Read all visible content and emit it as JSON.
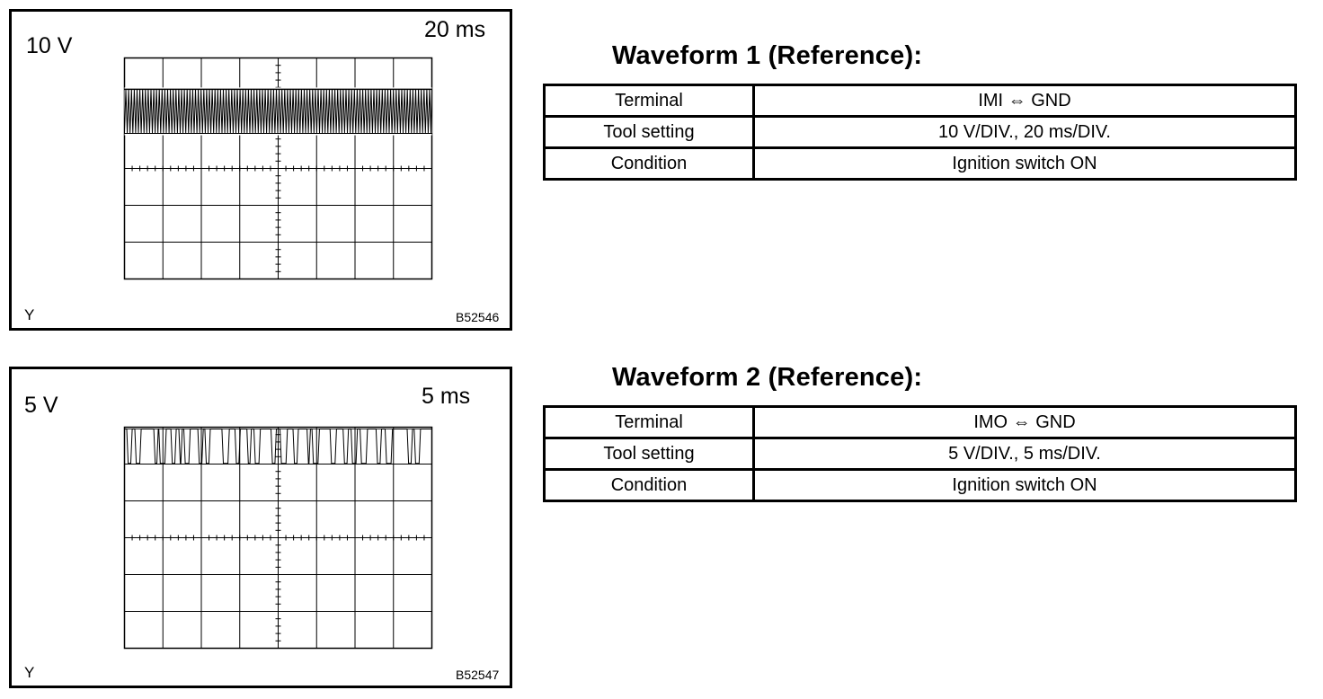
{
  "figures": [
    {
      "volt_label": "10 V",
      "time_label": "20 ms",
      "y_label": "Y",
      "figure_id": "B52546",
      "title": "Waveform 1 (Reference):",
      "rows": [
        {
          "key": "Terminal",
          "value": "IMI ⇔ GND"
        },
        {
          "key": "Tool setting",
          "value": "10 V/DIV., 20 ms/DIV."
        },
        {
          "key": "Condition",
          "value": "Ignition switch ON"
        }
      ]
    },
    {
      "volt_label": "5 V",
      "time_label": "5 ms",
      "y_label": "Y",
      "figure_id": "B52547",
      "title": "Waveform 2 (Reference):",
      "rows": [
        {
          "key": "Terminal",
          "value": "IMO ⇔ GND"
        },
        {
          "key": "Tool setting",
          "value": "5 V/DIV., 5 ms/DIV."
        },
        {
          "key": "Condition",
          "value": "Ignition switch ON"
        }
      ]
    }
  ]
}
